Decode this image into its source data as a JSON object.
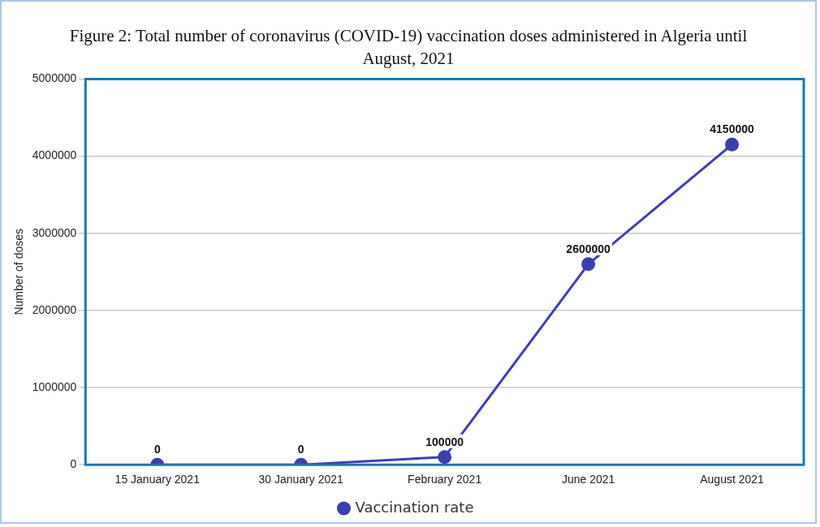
{
  "chart_data": {
    "type": "line",
    "title": "Figure 2: Total number of coronavirus (COVID-19) vaccination doses administered in Algeria until August, 2021",
    "ylabel": "Number of doses",
    "categories": [
      "15 January 2021",
      "30 January 2021",
      "February 2021",
      "June 2021",
      "August 2021"
    ],
    "series": [
      {
        "name": "Vaccination rate",
        "color": "#3b3fb0",
        "values": [
          0,
          0,
          100000,
          2600000,
          4150000
        ]
      }
    ],
    "ylim": [
      0,
      5000000
    ],
    "yticks": [
      0,
      1000000,
      2000000,
      3000000,
      4000000,
      5000000
    ],
    "grid": "y",
    "legend": "bottom",
    "marker": "circle",
    "data_labels": true
  }
}
